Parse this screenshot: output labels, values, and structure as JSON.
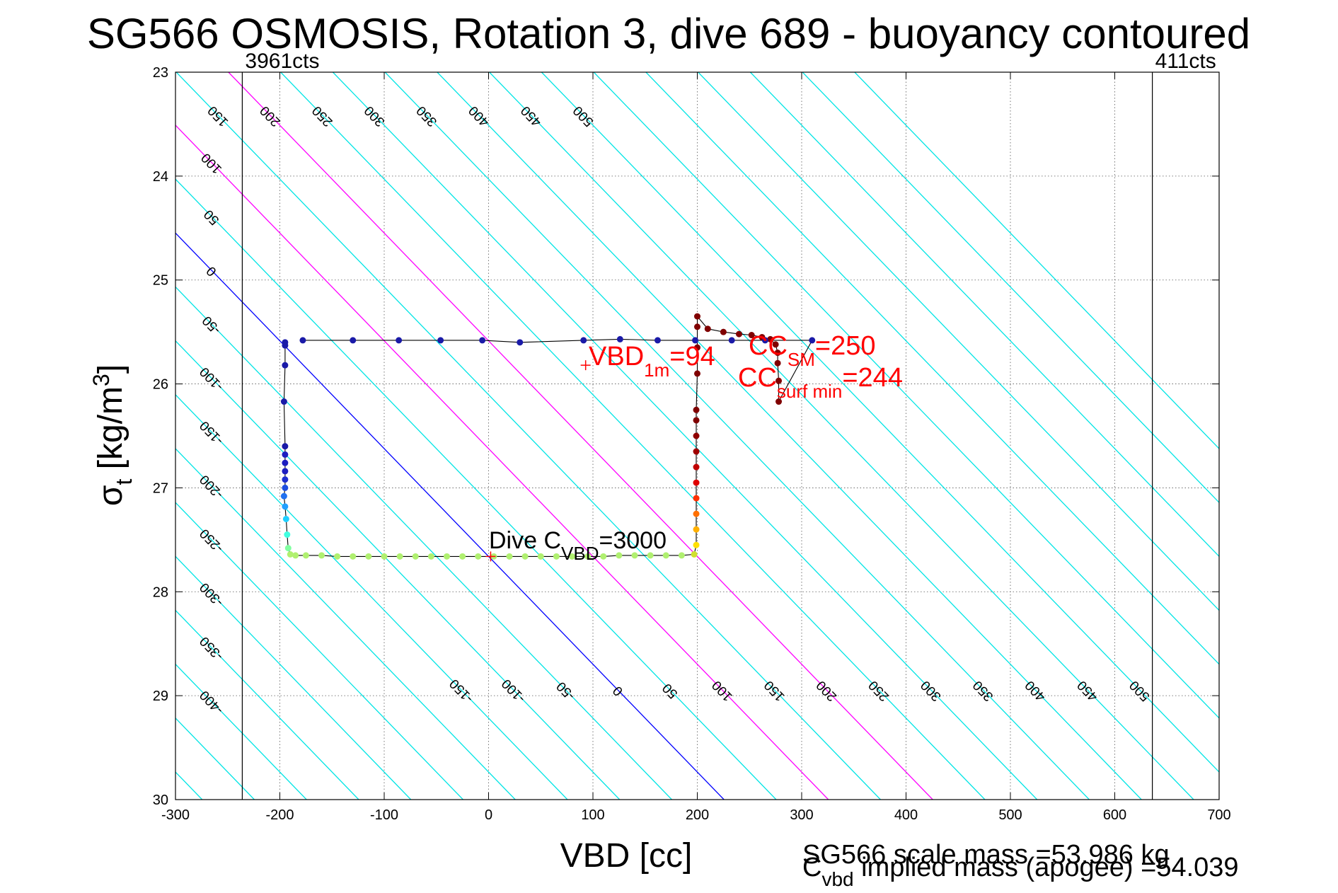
{
  "chart_data": {
    "type": "scatter",
    "title": "SG566 OSMOSIS, Rotation 3, dive 689 - buoyancy contoured",
    "xlabel": "VBD [cc]",
    "ylabel_main": "σ",
    "ylabel_sub": "t",
    "ylabel_unit_pre": " [kg/m",
    "ylabel_unit_sup": "3",
    "ylabel_unit_post": "]",
    "xlim": [
      -300,
      700
    ],
    "ylim": [
      23,
      30
    ],
    "y_reversed": true,
    "grid": true,
    "xticks": [
      -300,
      -200,
      -100,
      0,
      100,
      200,
      300,
      400,
      500,
      600,
      700
    ],
    "yticks": [
      23,
      24,
      25,
      26,
      27,
      28,
      29,
      30
    ],
    "contours": {
      "levels": [
        -400,
        -350,
        -300,
        -250,
        -200,
        -150,
        -100,
        -50,
        0,
        50,
        100,
        150,
        200,
        250,
        300,
        350,
        400,
        450,
        500
      ],
      "color_default": "#00e5e5",
      "highlight": [
        {
          "level": 0,
          "color": "#0000ff"
        },
        {
          "level": 100,
          "color": "#ff00ff"
        },
        {
          "level": 200,
          "color": "#ff00ff"
        }
      ],
      "labels_top": [
        {
          "level": -400,
          "text": "-400"
        },
        {
          "level": -350,
          "text": "-350"
        },
        {
          "level": -300,
          "text": "-300"
        },
        {
          "level": -250,
          "text": "-250"
        },
        {
          "level": -200,
          "text": "-200"
        },
        {
          "level": -150,
          "text": "-150"
        },
        {
          "level": -100,
          "text": "-100"
        },
        {
          "level": -50,
          "text": "-50"
        },
        {
          "level": 0,
          "text": "0"
        },
        {
          "level": 50,
          "text": "50"
        },
        {
          "level": 100,
          "text": "100"
        },
        {
          "level": 150,
          "text": "150"
        },
        {
          "level": 200,
          "text": "200"
        },
        {
          "level": 250,
          "text": "250"
        },
        {
          "level": 300,
          "text": "300"
        },
        {
          "level": 350,
          "text": "350"
        },
        {
          "level": 400,
          "text": "400"
        },
        {
          "level": 450,
          "text": "450"
        },
        {
          "level": 500,
          "text": "500"
        }
      ],
      "labels_bottom": [
        {
          "level": -150,
          "text": "-150"
        },
        {
          "level": -100,
          "text": "-100"
        },
        {
          "level": -50,
          "text": "-50"
        },
        {
          "level": 0,
          "text": "0"
        },
        {
          "level": 50,
          "text": "50"
        },
        {
          "level": 100,
          "text": "100"
        },
        {
          "level": 150,
          "text": "150"
        },
        {
          "level": 200,
          "text": "200"
        },
        {
          "level": 250,
          "text": "250"
        },
        {
          "level": 300,
          "text": "300"
        },
        {
          "level": 350,
          "text": "350"
        },
        {
          "level": 400,
          "text": "400"
        },
        {
          "level": 450,
          "text": "450"
        },
        {
          "level": 500,
          "text": "500"
        }
      ]
    },
    "limit_lines": [
      {
        "x": -236,
        "label": "3961cts"
      },
      {
        "x": 636,
        "label": "411cts"
      }
    ],
    "profile": {
      "line_color": "#000000",
      "points": [
        {
          "x": -195,
          "y": 25.6,
          "c": "#1a1aa8"
        },
        {
          "x": -195,
          "y": 25.63,
          "c": "#1a1aa8"
        },
        {
          "x": -195,
          "y": 25.82,
          "c": "#1a1aa8"
        },
        {
          "x": -196,
          "y": 26.17,
          "c": "#1a1aa8"
        },
        {
          "x": -195,
          "y": 26.6,
          "c": "#1a1aa8"
        },
        {
          "x": -195,
          "y": 26.68,
          "c": "#1e1ec0"
        },
        {
          "x": -195,
          "y": 26.76,
          "c": "#1e1ec0"
        },
        {
          "x": -195,
          "y": 26.84,
          "c": "#1e1ec0"
        },
        {
          "x": -195,
          "y": 26.92,
          "c": "#1e2ed0"
        },
        {
          "x": -195,
          "y": 27.0,
          "c": "#1e4ee0"
        },
        {
          "x": -196,
          "y": 27.08,
          "c": "#2070f0"
        },
        {
          "x": -195,
          "y": 27.18,
          "c": "#20a0ff"
        },
        {
          "x": -194,
          "y": 27.3,
          "c": "#20d0ff"
        },
        {
          "x": -193,
          "y": 27.45,
          "c": "#40ffe0"
        },
        {
          "x": -192,
          "y": 27.58,
          "c": "#80ffa0"
        },
        {
          "x": -190,
          "y": 27.64,
          "c": "#b0f070"
        },
        {
          "x": -185,
          "y": 27.65,
          "c": "#b0f070"
        },
        {
          "x": -175,
          "y": 27.65,
          "c": "#b0f070"
        },
        {
          "x": -160,
          "y": 27.65,
          "c": "#b0f070"
        },
        {
          "x": -145,
          "y": 27.66,
          "c": "#b0f070"
        },
        {
          "x": -130,
          "y": 27.66,
          "c": "#b0f070"
        },
        {
          "x": -115,
          "y": 27.66,
          "c": "#b0f070"
        },
        {
          "x": -100,
          "y": 27.66,
          "c": "#b0f070"
        },
        {
          "x": -85,
          "y": 27.66,
          "c": "#b0f070"
        },
        {
          "x": -70,
          "y": 27.66,
          "c": "#b0f070"
        },
        {
          "x": -55,
          "y": 27.66,
          "c": "#b0f070"
        },
        {
          "x": -40,
          "y": 27.66,
          "c": "#b0f070"
        },
        {
          "x": -25,
          "y": 27.66,
          "c": "#b0f070"
        },
        {
          "x": -10,
          "y": 27.66,
          "c": "#b0f070"
        },
        {
          "x": 5,
          "y": 27.66,
          "c": "#b0f070"
        },
        {
          "x": 20,
          "y": 27.66,
          "c": "#b0f070"
        },
        {
          "x": 35,
          "y": 27.66,
          "c": "#b0f070"
        },
        {
          "x": 50,
          "y": 27.66,
          "c": "#b0f070"
        },
        {
          "x": 65,
          "y": 27.66,
          "c": "#b0f070"
        },
        {
          "x": 80,
          "y": 27.66,
          "c": "#b0f070"
        },
        {
          "x": 95,
          "y": 27.66,
          "c": "#b0f070"
        },
        {
          "x": 110,
          "y": 27.66,
          "c": "#b0f070"
        },
        {
          "x": 125,
          "y": 27.65,
          "c": "#b0f070"
        },
        {
          "x": 140,
          "y": 27.65,
          "c": "#b0f070"
        },
        {
          "x": 155,
          "y": 27.65,
          "c": "#b0f070"
        },
        {
          "x": 170,
          "y": 27.65,
          "c": "#b0f070"
        },
        {
          "x": 185,
          "y": 27.65,
          "c": "#b0f070"
        },
        {
          "x": 197,
          "y": 27.64,
          "c": "#d0e030"
        },
        {
          "x": 199,
          "y": 27.55,
          "c": "#ffe000"
        },
        {
          "x": 199,
          "y": 27.4,
          "c": "#ffb000"
        },
        {
          "x": 199,
          "y": 27.25,
          "c": "#ff7000"
        },
        {
          "x": 199,
          "y": 27.1,
          "c": "#ff3000"
        },
        {
          "x": 199,
          "y": 26.95,
          "c": "#e00000"
        },
        {
          "x": 199,
          "y": 26.8,
          "c": "#c00000"
        },
        {
          "x": 199,
          "y": 26.65,
          "c": "#a00000"
        },
        {
          "x": 199,
          "y": 26.5,
          "c": "#900000"
        },
        {
          "x": 199,
          "y": 26.35,
          "c": "#800000"
        },
        {
          "x": 199,
          "y": 26.25,
          "c": "#800000"
        },
        {
          "x": 200,
          "y": 25.9,
          "c": "#800000"
        },
        {
          "x": 200,
          "y": 25.65,
          "c": "#800000"
        },
        {
          "x": 200,
          "y": 25.45,
          "c": "#800000"
        },
        {
          "x": 200,
          "y": 25.35,
          "c": "#800000"
        },
        {
          "x": 210,
          "y": 25.47,
          "c": "#800000"
        },
        {
          "x": 225,
          "y": 25.5,
          "c": "#800000"
        },
        {
          "x": 240,
          "y": 25.52,
          "c": "#800000"
        },
        {
          "x": 252,
          "y": 25.53,
          "c": "#800000"
        },
        {
          "x": 262,
          "y": 25.55,
          "c": "#800000"
        },
        {
          "x": 270,
          "y": 25.57,
          "c": "#800000"
        },
        {
          "x": 275,
          "y": 25.62,
          "c": "#800000"
        },
        {
          "x": 277,
          "y": 25.7,
          "c": "#800000"
        },
        {
          "x": 277,
          "y": 25.8,
          "c": "#800000"
        },
        {
          "x": 278,
          "y": 25.97,
          "c": "#800000"
        },
        {
          "x": 278,
          "y": 26.17,
          "c": "#800000"
        },
        {
          "x": 310,
          "y": 25.58,
          "c": "#1a1aa8"
        },
        {
          "x": 265,
          "y": 25.58,
          "c": "#1a1aa8"
        },
        {
          "x": 233,
          "y": 25.58,
          "c": "#1a1aa8"
        },
        {
          "x": 198,
          "y": 25.58,
          "c": "#1a1aa8"
        },
        {
          "x": 162,
          "y": 25.58,
          "c": "#1a1aa8"
        },
        {
          "x": 126,
          "y": 25.57,
          "c": "#1a1aa8"
        },
        {
          "x": 91,
          "y": 25.58,
          "c": "#1a1aa8"
        },
        {
          "x": 30,
          "y": 25.6,
          "c": "#1a1aa8"
        },
        {
          "x": -6,
          "y": 25.58,
          "c": "#1a1aa8"
        },
        {
          "x": -46,
          "y": 25.58,
          "c": "#1a1aa8"
        },
        {
          "x": -86,
          "y": 25.58,
          "c": "#1a1aa8"
        },
        {
          "x": -130,
          "y": 25.58,
          "c": "#1a1aa8"
        },
        {
          "x": -178,
          "y": 25.58,
          "c": "#1a1aa8"
        }
      ]
    },
    "markers": [
      {
        "x": 93,
        "y": 25.82,
        "color": "#ff0000"
      },
      {
        "x": 2,
        "y": 27.66,
        "color": "#ff0000"
      }
    ],
    "annotations": {
      "vbd1m": {
        "main": "VBD",
        "sub": "1m",
        "post": "=94"
      },
      "ccsm": {
        "main": "CC",
        "sub": "SM",
        "post": "=250"
      },
      "ccsurf": {
        "main": "CC",
        "sub": "surf min",
        "post": "=244"
      },
      "dive": {
        "main": "Dive C",
        "sub": "VBD",
        "post": "=3000"
      }
    },
    "mass_text_1": "SG566 scale mass =53.986 kg",
    "mass_text_2_main": "C",
    "mass_text_2_sub": "vbd",
    "mass_text_2_post": " implied mass (apogee) =54.039"
  }
}
